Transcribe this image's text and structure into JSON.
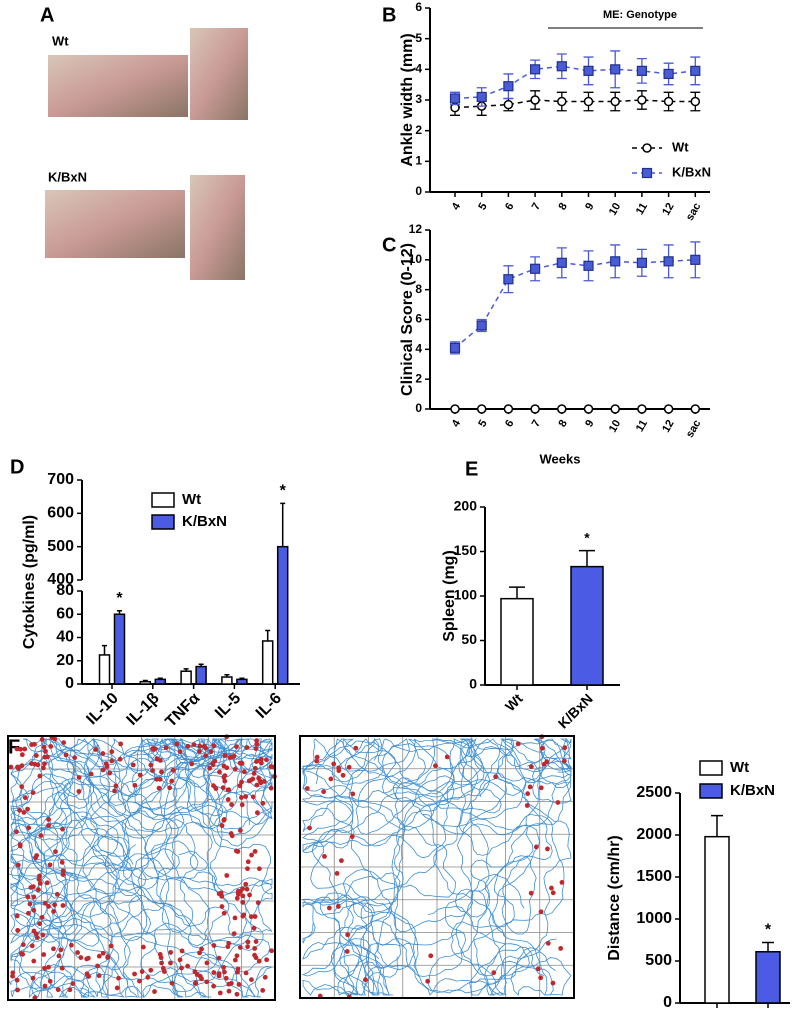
{
  "photos": {
    "panel": "A",
    "labels": [
      "Wt",
      "K/BxN"
    ]
  },
  "tracking": {
    "panel": "F"
  },
  "chart_data": [
    {
      "type": "line",
      "panel": "B",
      "ylabel": "Ankle width (mm)",
      "annotation": "ME: Genotype",
      "categories": [
        "4",
        "5",
        "6",
        "7",
        "8",
        "9",
        "10",
        "11",
        "12",
        "sac"
      ],
      "ylim": [
        0,
        6
      ],
      "yticks": [
        0,
        1,
        2,
        3,
        4,
        5,
        6
      ],
      "legend": "lower right",
      "series": [
        {
          "name": "Wt",
          "color": "#000000",
          "marker": "circle",
          "values": [
            2.75,
            2.8,
            2.85,
            3.0,
            2.95,
            2.95,
            2.95,
            3.0,
            2.95,
            2.95
          ],
          "errors": [
            0.25,
            0.3,
            0.2,
            0.3,
            0.3,
            0.3,
            0.3,
            0.3,
            0.3,
            0.3
          ]
        },
        {
          "name": "K/BxN",
          "color": "#4a5bd6",
          "marker": "square",
          "values": [
            3.05,
            3.1,
            3.45,
            4.0,
            4.1,
            3.95,
            4.0,
            3.95,
            3.85,
            3.95
          ],
          "errors": [
            0.2,
            0.3,
            0.4,
            0.3,
            0.4,
            0.45,
            0.6,
            0.4,
            0.35,
            0.45
          ]
        }
      ]
    },
    {
      "type": "line",
      "panel": "C",
      "ylabel": "Clinical Score (0-12)",
      "xlabel": "Weeks",
      "categories": [
        "4",
        "5",
        "6",
        "7",
        "8",
        "9",
        "10",
        "11",
        "12",
        "sac"
      ],
      "ylim": [
        0,
        12
      ],
      "yticks": [
        0,
        2,
        4,
        6,
        8,
        10,
        12
      ],
      "series": [
        {
          "name": "Wt",
          "color": "#000000",
          "marker": "circle",
          "values": [
            0,
            0,
            0,
            0,
            0,
            0,
            0,
            0,
            0,
            0
          ]
        },
        {
          "name": "K/BxN",
          "color": "#4a5bd6",
          "marker": "square",
          "values": [
            4.1,
            5.6,
            8.7,
            9.4,
            9.8,
            9.6,
            9.9,
            9.8,
            9.9,
            10.0
          ],
          "errors": [
            0.4,
            0.4,
            0.9,
            0.8,
            1.0,
            1.0,
            1.1,
            0.9,
            1.1,
            1.2
          ]
        }
      ]
    },
    {
      "type": "bar",
      "panel": "D",
      "ylabel": "Cytokines (pg/ml)",
      "categories": [
        "IL-10",
        "IL-1β",
        "TNFα",
        "IL-5",
        "IL-6"
      ],
      "ylim": [
        0,
        700
      ],
      "ybreak": [
        80,
        400
      ],
      "yticks": [
        0,
        20,
        40,
        60,
        80,
        400,
        500,
        600,
        700
      ],
      "legend": "upper center",
      "series": [
        {
          "name": "Wt",
          "color": "#ffffff",
          "values": [
            25,
            2,
            11,
            6,
            37
          ],
          "errors": [
            8,
            1,
            2,
            2,
            9
          ]
        },
        {
          "name": "K/BxN",
          "color": "#4b5be3",
          "values": [
            60,
            4,
            15,
            4,
            500
          ],
          "errors": [
            3,
            1,
            2,
            1,
            130
          ],
          "significance": [
            "*",
            null,
            null,
            null,
            "*"
          ]
        }
      ]
    },
    {
      "type": "bar",
      "panel": "E",
      "ylabel": "Spleen (mg)",
      "categories": [
        "Wt",
        "K/BxN"
      ],
      "values": [
        97,
        133
      ],
      "errors": [
        13,
        18
      ],
      "colors": [
        "#ffffff",
        "#4b5be3"
      ],
      "significance": [
        null,
        "*"
      ],
      "ylim": [
        0,
        200
      ],
      "yticks": [
        0,
        50,
        100,
        150,
        200
      ]
    },
    {
      "type": "bar",
      "ylabel": "Distance (cm/hr)",
      "legend": "upper right",
      "ylim": [
        0,
        2500
      ],
      "yticks": [
        0,
        500,
        1000,
        1500,
        2000,
        2500
      ],
      "series": [
        {
          "name": "Wt",
          "color": "#ffffff",
          "values": [
            1980
          ],
          "errors": [
            250
          ]
        },
        {
          "name": "K/BxN",
          "color": "#4b5be3",
          "values": [
            610
          ],
          "errors": [
            110
          ],
          "significance": [
            "*"
          ]
        }
      ]
    }
  ]
}
